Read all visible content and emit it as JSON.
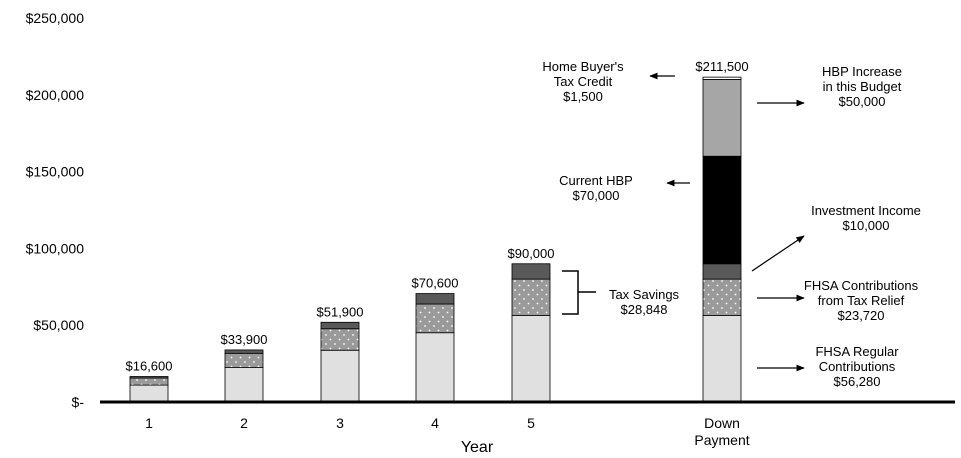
{
  "chart_data": {
    "type": "bar",
    "stacked": true,
    "xlabel": "Year",
    "categories": [
      "1",
      "2",
      "3",
      "4",
      "5",
      "Down Payment"
    ],
    "ylim": [
      0,
      250000
    ],
    "yticks": [
      0,
      50000,
      100000,
      150000,
      200000,
      250000
    ],
    "ytick_labels": [
      "$-",
      "$50,000",
      "$100,000",
      "$150,000",
      "$200,000",
      "$250,000"
    ],
    "grid": false,
    "series": [
      {
        "name": "FHSA Regular Contributions",
        "values": [
          11000,
          22400,
          33700,
          45100,
          56280,
          56280
        ],
        "color": "#e0e0e0"
      },
      {
        "name": "FHSA Contributions from Tax Relief",
        "values": [
          4600,
          9300,
          14000,
          18700,
          23720,
          23720
        ],
        "color": "#9a9a9a",
        "pattern": "dots"
      },
      {
        "name": "Investment Income",
        "values": [
          1000,
          2200,
          4200,
          6800,
          10000,
          10000
        ],
        "color": "#595959"
      },
      {
        "name": "Current HBP",
        "values": [
          0,
          0,
          0,
          0,
          0,
          70000
        ],
        "color": "#000000"
      },
      {
        "name": "HBP Increase in this Budget",
        "values": [
          0,
          0,
          0,
          0,
          0,
          50000
        ],
        "color": "#a6a6a6"
      },
      {
        "name": "Home Buyer's Tax Credit",
        "values": [
          0,
          0,
          0,
          0,
          0,
          1500
        ],
        "color": "#ffffff"
      }
    ],
    "totals": [
      "$16,600",
      "$33,900",
      "$51,900",
      "$70,600",
      "$90,000",
      "$211,500"
    ],
    "annotations": [
      {
        "id": "tax-credit",
        "lines": [
          "Home Buyer's",
          "Tax Credit",
          "$1,500"
        ],
        "arrow": "left"
      },
      {
        "id": "hbp-increase",
        "lines": [
          "HBP Increase",
          "in this Budget",
          "$50,000"
        ],
        "arrow": "right"
      },
      {
        "id": "current-hbp",
        "lines": [
          "Current HBP",
          "$70,000"
        ],
        "arrow": "left"
      },
      {
        "id": "investment-income",
        "lines": [
          "Investment Income",
          "$10,000"
        ],
        "arrow": "up-right"
      },
      {
        "id": "fhsa-tax-relief",
        "lines": [
          "FHSA Contributions",
          "from Tax Relief",
          "$23,720"
        ],
        "arrow": "right"
      },
      {
        "id": "fhsa-regular",
        "lines": [
          "FHSA Regular",
          "Contributions",
          "$56,280"
        ],
        "arrow": "right"
      },
      {
        "id": "tax-savings",
        "lines": [
          "Tax Savings",
          "$28,848"
        ],
        "arrow": "bracket"
      }
    ]
  }
}
